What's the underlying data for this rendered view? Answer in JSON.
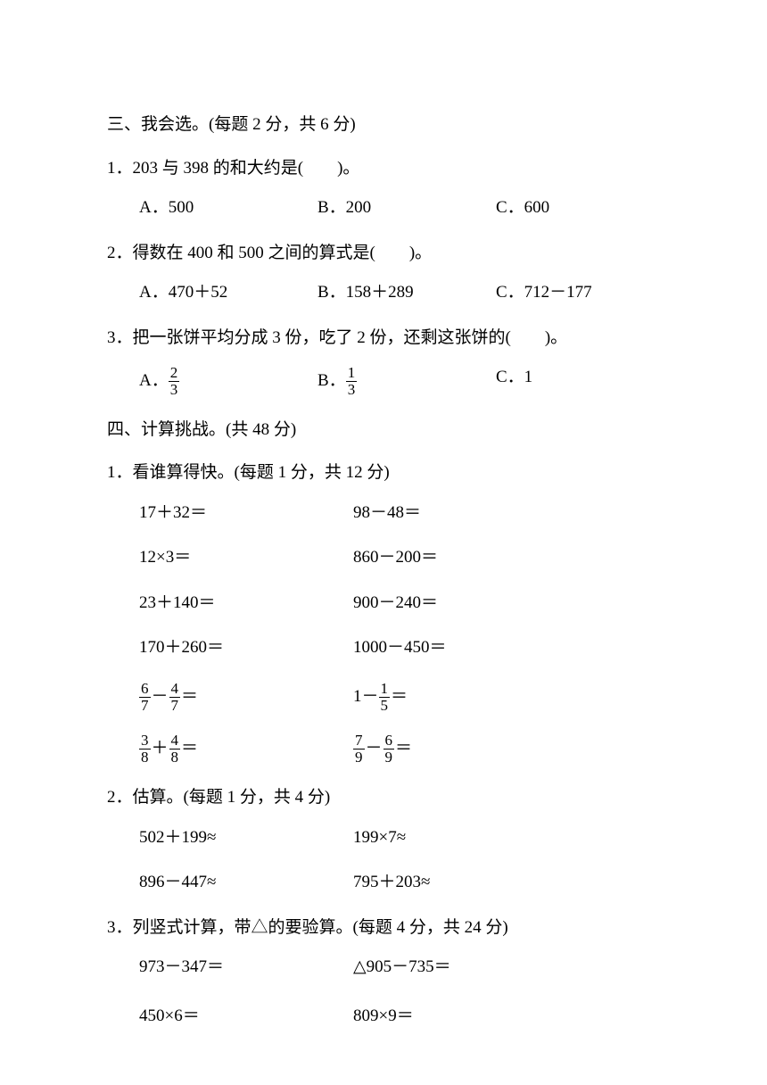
{
  "section3": {
    "title": "三、我会选。(每题 2 分，共 6 分)",
    "q1": {
      "text": "1．203 与 398 的和大约是(　　)。",
      "a": "A．500",
      "b": "B．200",
      "c": "C．600"
    },
    "q2": {
      "text": "2．得数在 400 和 500 之间的算式是(　　)。",
      "a": "A．470＋52",
      "b": "B．158＋289",
      "c": "C．712－177"
    },
    "q3": {
      "text": "3．把一张饼平均分成 3 份，吃了 2 份，还剩这张饼的(　　)。",
      "a_prefix": "A．",
      "a_num": "2",
      "a_den": "3",
      "b_prefix": "B．",
      "b_num": "1",
      "b_den": "3",
      "c": "C．1"
    }
  },
  "section4": {
    "title": "四、计算挑战。(共 48 分)",
    "part1": {
      "title": "1．看谁算得快。(每题 1 分，共 12 分)",
      "r1a": "17＋32＝",
      "r1b": "98－48＝",
      "r2a": "12×3＝",
      "r2b": "860－200＝",
      "r3a": "23＋140＝",
      "r3b": "900－240＝",
      "r4a": "170＋260＝",
      "r4b": "1000－450＝",
      "r5a_n1": "6",
      "r5a_d1": "7",
      "r5a_op": "－",
      "r5a_n2": "4",
      "r5a_d2": "7",
      "r5a_eq": "＝",
      "r5b_prefix": "1－",
      "r5b_n": "1",
      "r5b_d": "5",
      "r5b_eq": "＝",
      "r6a_n1": "3",
      "r6a_d1": "8",
      "r6a_op": "＋",
      "r6a_n2": "4",
      "r6a_d2": "8",
      "r6a_eq": "＝",
      "r6b_n1": "7",
      "r6b_d1": "9",
      "r6b_op": "－",
      "r6b_n2": "6",
      "r6b_d2": "9",
      "r6b_eq": "＝"
    },
    "part2": {
      "title": "2．估算。(每题 1 分，共 4 分)",
      "r1a": "502＋199≈",
      "r1b": "199×7≈",
      "r2a": "896－447≈",
      "r2b": "795＋203≈"
    },
    "part3": {
      "title": "3．列竖式计算，带△的要验算。(每题 4 分，共 24 分)",
      "r1a": "973－347＝",
      "r1b": "△905－735＝",
      "r2a": "450×6＝",
      "r2b": "809×9＝"
    }
  }
}
